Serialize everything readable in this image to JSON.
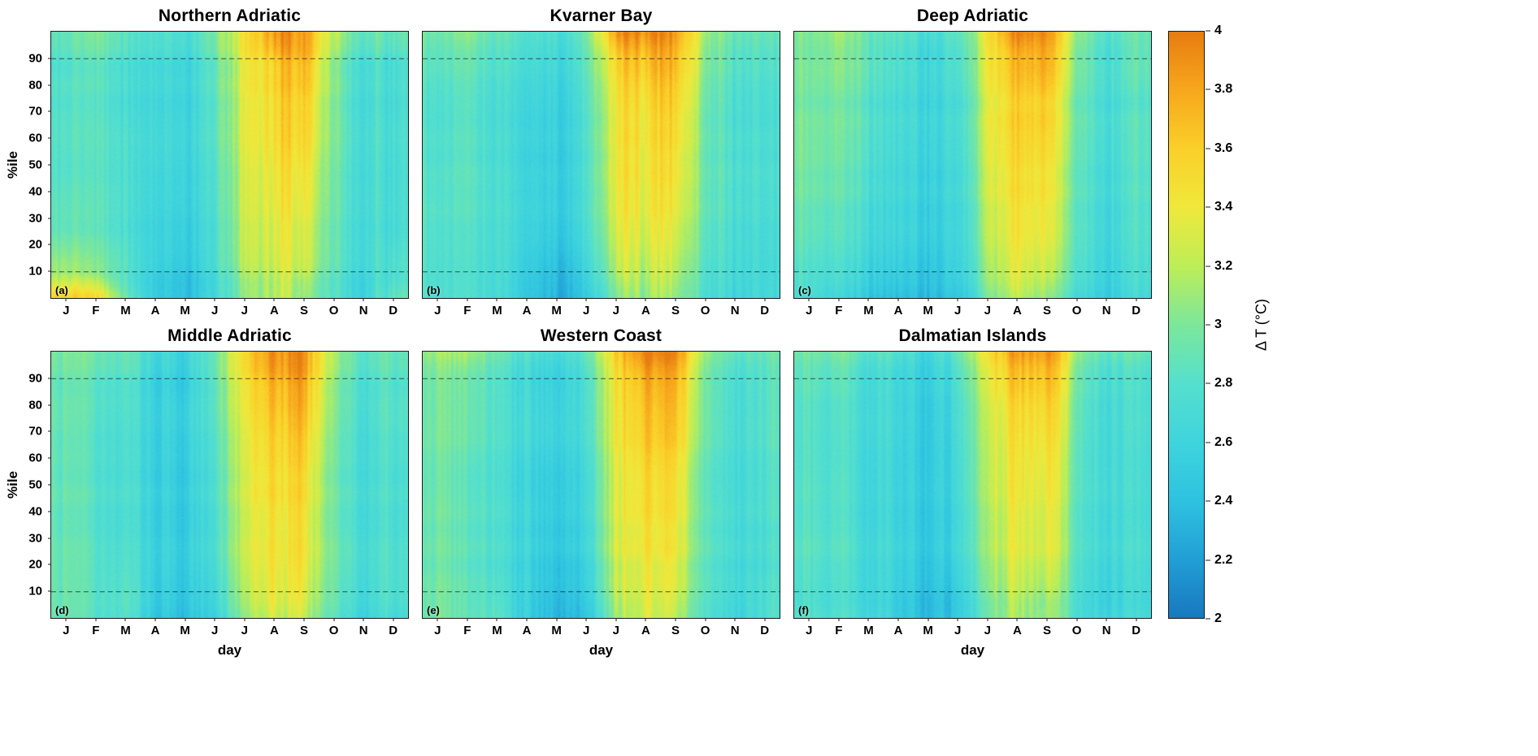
{
  "chart_data": {
    "type": "heatmap",
    "xlabel": "day",
    "ylabel": "%ile",
    "value_label": "Δ T (°C)",
    "value_range": [
      2,
      4
    ],
    "categories_x": [
      "J",
      "F",
      "M",
      "A",
      "M",
      "J",
      "J",
      "A",
      "S",
      "O",
      "N",
      "D"
    ],
    "y_ticks": [
      10,
      20,
      30,
      40,
      50,
      60,
      70,
      80,
      90
    ],
    "dashed_percentiles": [
      10,
      90
    ],
    "percentiles": [
      1,
      10,
      25,
      50,
      75,
      90,
      99
    ],
    "colorbar_ticks": [
      "2",
      "2.2",
      "2.4",
      "2.6",
      "2.8",
      "3",
      "3.2",
      "3.4",
      "3.6",
      "3.8",
      "4"
    ],
    "colormap": [
      {
        "value": 2.0,
        "color": "#1878be"
      },
      {
        "value": 2.2,
        "color": "#219fd6"
      },
      {
        "value": 2.4,
        "color": "#2fc2e0"
      },
      {
        "value": 2.6,
        "color": "#3fd4dd"
      },
      {
        "value": 2.8,
        "color": "#55e0cd"
      },
      {
        "value": 3.0,
        "color": "#7ce79b"
      },
      {
        "value": 3.2,
        "color": "#bdee57"
      },
      {
        "value": 3.4,
        "color": "#f0e83b"
      },
      {
        "value": 3.6,
        "color": "#fad029"
      },
      {
        "value": 3.8,
        "color": "#f7a71d"
      },
      {
        "value": 4.0,
        "color": "#e77c11"
      }
    ],
    "layout": {
      "grid": "2x3",
      "colorbar_position": "right",
      "x_span": "Jan-Dec",
      "y_span": "percentile 0-100"
    },
    "panels": [
      {
        "label": "(a)",
        "title": "Northern Adriatic",
        "values": [
          [
            3.55,
            3.45,
            2.9,
            2.5,
            2.35,
            2.6,
            3.1,
            3.25,
            3.1,
            2.8,
            2.6,
            2.9
          ],
          [
            3.1,
            3.0,
            2.8,
            2.55,
            2.4,
            2.65,
            3.2,
            3.3,
            3.25,
            2.85,
            2.65,
            2.8
          ],
          [
            2.9,
            2.85,
            2.75,
            2.6,
            2.5,
            2.7,
            3.3,
            3.4,
            3.35,
            2.9,
            2.7,
            2.75
          ],
          [
            2.8,
            2.8,
            2.75,
            2.65,
            2.55,
            2.75,
            3.35,
            3.5,
            3.5,
            2.95,
            2.7,
            2.75
          ],
          [
            2.8,
            2.8,
            2.7,
            2.65,
            2.55,
            2.8,
            3.4,
            3.6,
            3.65,
            3.0,
            2.7,
            2.75
          ],
          [
            2.8,
            2.85,
            2.75,
            2.7,
            2.6,
            2.85,
            3.45,
            3.7,
            3.8,
            3.05,
            2.75,
            2.8
          ],
          [
            2.9,
            3.0,
            2.85,
            2.8,
            2.7,
            2.95,
            3.55,
            3.95,
            3.9,
            3.2,
            2.9,
            2.95
          ]
        ]
      },
      {
        "label": "(b)",
        "title": "Kvarner Bay",
        "values": [
          [
            2.8,
            2.75,
            2.7,
            2.5,
            2.3,
            2.45,
            3.0,
            3.2,
            3.1,
            2.75,
            2.6,
            2.7
          ],
          [
            2.8,
            2.75,
            2.7,
            2.55,
            2.35,
            2.55,
            3.15,
            3.3,
            3.2,
            2.8,
            2.65,
            2.7
          ],
          [
            2.8,
            2.75,
            2.7,
            2.6,
            2.45,
            2.65,
            3.25,
            3.4,
            3.3,
            2.85,
            2.65,
            2.7
          ],
          [
            2.8,
            2.8,
            2.7,
            2.6,
            2.5,
            2.7,
            3.35,
            3.5,
            3.45,
            2.9,
            2.7,
            2.75
          ],
          [
            2.8,
            2.8,
            2.7,
            2.65,
            2.55,
            2.75,
            3.4,
            3.6,
            3.6,
            2.95,
            2.7,
            2.75
          ],
          [
            2.85,
            2.85,
            2.75,
            2.7,
            2.6,
            2.8,
            3.5,
            3.75,
            3.7,
            3.0,
            2.75,
            2.8
          ],
          [
            2.95,
            3.0,
            2.85,
            2.8,
            2.7,
            2.9,
            3.8,
            4.0,
            3.85,
            3.1,
            2.85,
            2.9
          ]
        ]
      },
      {
        "label": "(c)",
        "title": "Deep Adriatic",
        "values": [
          [
            2.75,
            2.6,
            2.5,
            2.4,
            2.35,
            2.5,
            3.0,
            3.15,
            3.1,
            2.7,
            2.55,
            2.65
          ],
          [
            2.8,
            2.7,
            2.6,
            2.5,
            2.4,
            2.6,
            3.1,
            3.25,
            3.25,
            2.8,
            2.6,
            2.7
          ],
          [
            2.9,
            2.8,
            2.7,
            2.6,
            2.5,
            2.65,
            3.2,
            3.35,
            3.4,
            2.85,
            2.65,
            2.75
          ],
          [
            3.0,
            2.9,
            2.8,
            2.65,
            2.55,
            2.7,
            3.3,
            3.45,
            3.5,
            2.9,
            2.7,
            2.8
          ],
          [
            3.0,
            2.95,
            2.85,
            2.7,
            2.6,
            2.75,
            3.35,
            3.55,
            3.65,
            2.95,
            2.75,
            2.8
          ],
          [
            3.0,
            3.0,
            2.9,
            2.75,
            2.6,
            2.8,
            3.4,
            3.65,
            3.8,
            3.0,
            2.75,
            2.85
          ],
          [
            3.05,
            3.1,
            2.95,
            2.85,
            2.7,
            2.9,
            3.5,
            3.9,
            3.95,
            3.1,
            2.85,
            2.9
          ]
        ]
      },
      {
        "label": "(d)",
        "title": "Middle Adriatic",
        "values": [
          [
            2.85,
            2.8,
            2.75,
            2.5,
            2.4,
            2.55,
            3.1,
            3.3,
            3.2,
            2.8,
            2.6,
            2.7
          ],
          [
            2.85,
            2.8,
            2.75,
            2.55,
            2.45,
            2.6,
            3.2,
            3.4,
            3.3,
            2.85,
            2.65,
            2.75
          ],
          [
            2.85,
            2.8,
            2.7,
            2.6,
            2.5,
            2.7,
            3.3,
            3.45,
            3.4,
            2.9,
            2.7,
            2.75
          ],
          [
            2.85,
            2.8,
            2.7,
            2.6,
            2.5,
            2.75,
            3.35,
            3.55,
            3.5,
            2.9,
            2.7,
            2.75
          ],
          [
            2.85,
            2.8,
            2.7,
            2.6,
            2.55,
            2.8,
            3.4,
            3.65,
            3.65,
            2.95,
            2.7,
            2.8
          ],
          [
            2.85,
            2.85,
            2.75,
            2.6,
            2.5,
            2.85,
            3.5,
            3.8,
            3.8,
            3.0,
            2.75,
            2.8
          ],
          [
            2.95,
            2.95,
            2.85,
            2.7,
            2.6,
            2.9,
            3.6,
            3.95,
            3.9,
            3.1,
            2.85,
            2.9
          ]
        ]
      },
      {
        "label": "(e)",
        "title": "Western Coast",
        "values": [
          [
            2.9,
            2.85,
            2.8,
            2.5,
            2.3,
            2.45,
            3.1,
            3.3,
            3.15,
            2.8,
            2.6,
            2.75
          ],
          [
            2.9,
            2.85,
            2.75,
            2.55,
            2.35,
            2.55,
            3.2,
            3.35,
            3.25,
            2.85,
            2.65,
            2.75
          ],
          [
            2.9,
            2.85,
            2.75,
            2.6,
            2.45,
            2.65,
            3.3,
            3.45,
            3.35,
            2.9,
            2.7,
            2.75
          ],
          [
            2.9,
            2.85,
            2.75,
            2.6,
            2.5,
            2.7,
            3.35,
            3.55,
            3.45,
            2.9,
            2.7,
            2.8
          ],
          [
            2.9,
            2.9,
            2.75,
            2.65,
            2.55,
            2.75,
            3.4,
            3.65,
            3.6,
            2.95,
            2.7,
            2.8
          ],
          [
            2.95,
            2.95,
            2.8,
            2.65,
            2.55,
            2.8,
            3.5,
            3.8,
            3.75,
            3.0,
            2.75,
            2.85
          ],
          [
            3.05,
            3.1,
            2.9,
            2.75,
            2.65,
            2.9,
            3.6,
            4.0,
            3.9,
            3.1,
            2.85,
            2.9
          ]
        ]
      },
      {
        "label": "(f)",
        "title": "Dalmatian Islands",
        "values": [
          [
            2.8,
            2.75,
            2.7,
            2.5,
            2.35,
            2.45,
            3.0,
            3.2,
            3.1,
            2.75,
            2.6,
            2.7
          ],
          [
            2.8,
            2.75,
            2.7,
            2.55,
            2.4,
            2.5,
            3.1,
            3.3,
            3.2,
            2.8,
            2.6,
            2.7
          ],
          [
            2.85,
            2.8,
            2.7,
            2.6,
            2.45,
            2.6,
            3.2,
            3.4,
            3.35,
            2.85,
            2.65,
            2.75
          ],
          [
            2.85,
            2.8,
            2.7,
            2.6,
            2.5,
            2.65,
            3.3,
            3.5,
            3.45,
            2.9,
            2.7,
            2.75
          ],
          [
            2.85,
            2.8,
            2.75,
            2.65,
            2.5,
            2.7,
            3.35,
            3.6,
            3.6,
            2.95,
            2.7,
            2.8
          ],
          [
            2.9,
            2.85,
            2.75,
            2.65,
            2.55,
            2.75,
            3.45,
            3.75,
            3.75,
            3.0,
            2.75,
            2.8
          ],
          [
            2.95,
            2.95,
            2.85,
            2.75,
            2.6,
            2.85,
            3.55,
            3.9,
            3.9,
            3.1,
            2.85,
            2.9
          ]
        ]
      }
    ]
  }
}
